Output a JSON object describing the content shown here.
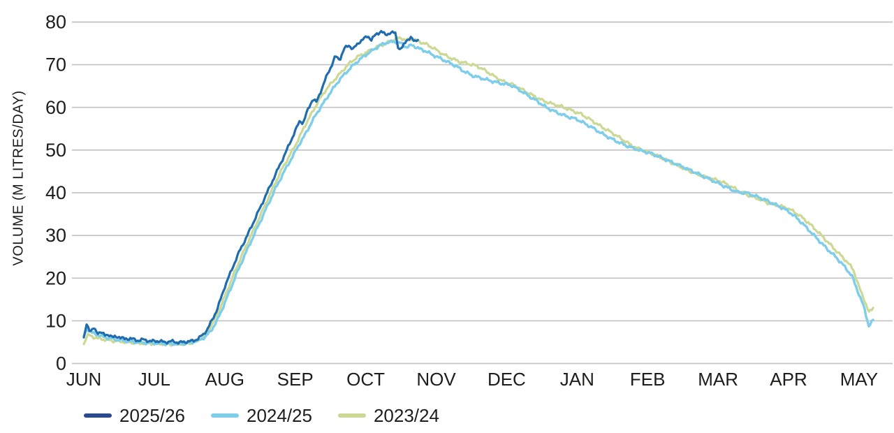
{
  "chart_data": {
    "type": "line",
    "title": "",
    "xlabel": "",
    "ylabel": "VOLUME (M LITRES/DAY)",
    "y_unit": "M litres/day",
    "x_unit": "months_from_jun1",
    "x_categories": [
      "JUN",
      "JUL",
      "AUG",
      "SEP",
      "OCT",
      "NOV",
      "DEC",
      "JAN",
      "FEB",
      "MAR",
      "APR",
      "MAY"
    ],
    "ylim": [
      0,
      80
    ],
    "yticks": [
      0,
      10,
      20,
      30,
      40,
      50,
      60,
      70,
      80
    ],
    "grid": "horizontal",
    "grid_color": "#c6c6c6",
    "text_color": "#1d1d1b",
    "background_color": "#ffffff",
    "legend_position": "bottom-left",
    "series": [
      {
        "name": "2025/26",
        "color": "#1f6cae",
        "legend_color": "#2b4a8c",
        "line_width": 3.2,
        "points": [
          [
            0.0,
            5.8
          ],
          [
            0.04,
            9.1
          ],
          [
            0.09,
            7.7
          ],
          [
            0.14,
            8.2
          ],
          [
            0.19,
            7.1
          ],
          [
            0.24,
            7.5
          ],
          [
            0.3,
            6.5
          ],
          [
            0.36,
            6.8
          ],
          [
            0.42,
            6.1
          ],
          [
            0.5,
            6.3
          ],
          [
            0.58,
            5.7
          ],
          [
            0.66,
            5.9
          ],
          [
            0.75,
            5.4
          ],
          [
            0.85,
            5.6
          ],
          [
            0.95,
            5.2
          ],
          [
            1.05,
            5.3
          ],
          [
            1.15,
            5.0
          ],
          [
            1.25,
            5.2
          ],
          [
            1.35,
            4.9
          ],
          [
            1.45,
            5.1
          ],
          [
            1.55,
            5.3
          ],
          [
            1.63,
            5.9
          ],
          [
            1.7,
            6.9
          ],
          [
            1.76,
            8.2
          ],
          [
            1.83,
            10.5
          ],
          [
            1.9,
            13.0
          ],
          [
            2.0,
            18.0
          ],
          [
            2.1,
            22.0
          ],
          [
            2.2,
            26.0
          ],
          [
            2.32,
            30.0
          ],
          [
            2.46,
            35.0
          ],
          [
            2.6,
            40.0
          ],
          [
            2.74,
            45.0
          ],
          [
            2.88,
            50.0
          ],
          [
            3.0,
            54.5
          ],
          [
            3.07,
            57.0
          ],
          [
            3.11,
            56.2
          ],
          [
            3.18,
            59.5
          ],
          [
            3.25,
            62.0
          ],
          [
            3.3,
            61.2
          ],
          [
            3.38,
            64.5
          ],
          [
            3.45,
            67.5
          ],
          [
            3.52,
            70.0
          ],
          [
            3.57,
            72.0
          ],
          [
            3.63,
            71.2
          ],
          [
            3.7,
            73.8
          ],
          [
            3.76,
            74.6
          ],
          [
            3.82,
            73.6
          ],
          [
            3.9,
            75.2
          ],
          [
            3.97,
            76.0
          ],
          [
            4.03,
            76.8
          ],
          [
            4.08,
            75.8
          ],
          [
            4.15,
            77.2
          ],
          [
            4.22,
            77.8
          ],
          [
            4.28,
            77.0
          ],
          [
            4.35,
            77.5
          ],
          [
            4.42,
            77.4
          ],
          [
            4.47,
            73.5
          ],
          [
            4.52,
            74.0
          ],
          [
            4.58,
            75.8
          ],
          [
            4.64,
            76.3
          ],
          [
            4.69,
            75.4
          ],
          [
            4.75,
            76.2
          ]
        ]
      },
      {
        "name": "2024/25",
        "color": "#7ecdea",
        "legend_color": "#7ecdea",
        "line_width": 3.4,
        "points": [
          [
            0.0,
            6.2
          ],
          [
            0.04,
            8.3
          ],
          [
            0.1,
            7.3
          ],
          [
            0.17,
            6.9
          ],
          [
            0.25,
            6.4
          ],
          [
            0.34,
            6.0
          ],
          [
            0.44,
            5.7
          ],
          [
            0.55,
            5.4
          ],
          [
            0.68,
            5.1
          ],
          [
            0.82,
            4.9
          ],
          [
            0.96,
            4.8
          ],
          [
            1.1,
            4.7
          ],
          [
            1.25,
            4.6
          ],
          [
            1.4,
            4.6
          ],
          [
            1.52,
            4.9
          ],
          [
            1.63,
            5.4
          ],
          [
            1.73,
            6.3
          ],
          [
            1.81,
            7.8
          ],
          [
            1.89,
            10.0
          ],
          [
            1.97,
            13.0
          ],
          [
            2.07,
            17.0
          ],
          [
            2.18,
            21.5
          ],
          [
            2.3,
            26.0
          ],
          [
            2.44,
            31.0
          ],
          [
            2.58,
            36.0
          ],
          [
            2.72,
            41.0
          ],
          [
            2.86,
            45.5
          ],
          [
            2.98,
            49.0
          ],
          [
            3.06,
            51.5
          ],
          [
            3.12,
            53.0
          ],
          [
            3.2,
            55.5
          ],
          [
            3.3,
            58.5
          ],
          [
            3.42,
            61.5
          ],
          [
            3.52,
            64.0
          ],
          [
            3.63,
            66.5
          ],
          [
            3.74,
            68.5
          ],
          [
            3.85,
            70.3
          ],
          [
            3.96,
            71.8
          ],
          [
            4.08,
            73.2
          ],
          [
            4.2,
            74.5
          ],
          [
            4.3,
            75.2
          ],
          [
            4.4,
            75.4
          ],
          [
            4.5,
            75.0
          ],
          [
            4.58,
            74.1
          ],
          [
            4.66,
            74.6
          ],
          [
            4.75,
            73.8
          ],
          [
            4.85,
            73.2
          ],
          [
            4.95,
            72.3
          ],
          [
            5.07,
            71.4
          ],
          [
            5.18,
            70.5
          ],
          [
            5.27,
            69.8
          ],
          [
            5.4,
            68.4
          ],
          [
            5.52,
            67.4
          ],
          [
            5.65,
            66.8
          ],
          [
            5.78,
            66.2
          ],
          [
            5.9,
            65.7
          ],
          [
            6.07,
            65.2
          ],
          [
            6.2,
            63.9
          ],
          [
            6.33,
            62.5
          ],
          [
            6.45,
            61.3
          ],
          [
            6.56,
            60.0
          ],
          [
            6.7,
            58.9
          ],
          [
            6.85,
            57.9
          ],
          [
            7.0,
            57.2
          ],
          [
            7.1,
            56.3
          ],
          [
            7.22,
            55.2
          ],
          [
            7.35,
            53.9
          ],
          [
            7.48,
            52.7
          ],
          [
            7.62,
            51.6
          ],
          [
            7.75,
            50.7
          ],
          [
            7.9,
            49.9
          ],
          [
            8.05,
            49.2
          ],
          [
            8.2,
            48.2
          ],
          [
            8.38,
            46.9
          ],
          [
            8.55,
            45.7
          ],
          [
            8.72,
            44.4
          ],
          [
            8.88,
            43.2
          ],
          [
            9.03,
            42.0
          ],
          [
            9.16,
            41.0
          ],
          [
            9.28,
            40.1
          ],
          [
            9.4,
            40.0
          ],
          [
            9.52,
            39.3
          ],
          [
            9.66,
            38.4
          ],
          [
            9.8,
            37.3
          ],
          [
            9.92,
            36.4
          ],
          [
            10.02,
            35.4
          ],
          [
            10.15,
            33.6
          ],
          [
            10.28,
            31.4
          ],
          [
            10.42,
            29.0
          ],
          [
            10.55,
            26.8
          ],
          [
            10.68,
            24.8
          ],
          [
            10.8,
            22.6
          ],
          [
            10.9,
            20.5
          ],
          [
            11.0,
            16.2
          ],
          [
            11.07,
            13.2
          ],
          [
            11.14,
            8.8
          ],
          [
            11.2,
            10.1
          ]
        ]
      },
      {
        "name": "2023/24",
        "color": "#ccd995",
        "legend_color": "#ccd995",
        "line_width": 3.2,
        "points": [
          [
            0.0,
            4.6
          ],
          [
            0.05,
            6.7
          ],
          [
            0.12,
            6.3
          ],
          [
            0.2,
            5.9
          ],
          [
            0.3,
            5.6
          ],
          [
            0.42,
            5.3
          ],
          [
            0.55,
            5.1
          ],
          [
            0.7,
            4.9
          ],
          [
            0.85,
            4.7
          ],
          [
            1.0,
            4.7
          ],
          [
            1.15,
            4.6
          ],
          [
            1.3,
            4.5
          ],
          [
            1.45,
            4.7
          ],
          [
            1.57,
            5.0
          ],
          [
            1.67,
            5.9
          ],
          [
            1.76,
            7.5
          ],
          [
            1.84,
            9.8
          ],
          [
            1.92,
            12.5
          ],
          [
            2.02,
            16.5
          ],
          [
            2.13,
            21.0
          ],
          [
            2.26,
            26.0
          ],
          [
            2.4,
            31.0
          ],
          [
            2.54,
            36.0
          ],
          [
            2.68,
            41.0
          ],
          [
            2.81,
            45.5
          ],
          [
            2.93,
            49.0
          ],
          [
            3.03,
            52.0
          ],
          [
            3.13,
            55.5
          ],
          [
            3.23,
            58.5
          ],
          [
            3.33,
            61.5
          ],
          [
            3.43,
            64.0
          ],
          [
            3.53,
            66.0
          ],
          [
            3.64,
            68.0
          ],
          [
            3.76,
            70.2
          ],
          [
            3.88,
            71.8
          ],
          [
            4.0,
            72.8
          ],
          [
            4.1,
            73.6
          ],
          [
            4.22,
            74.6
          ],
          [
            4.33,
            75.3
          ],
          [
            4.43,
            76.1
          ],
          [
            4.5,
            76.3
          ],
          [
            4.57,
            75.7
          ],
          [
            4.66,
            76.0
          ],
          [
            4.76,
            75.4
          ],
          [
            4.86,
            74.8
          ],
          [
            4.96,
            73.9
          ],
          [
            5.08,
            72.6
          ],
          [
            5.2,
            71.6
          ],
          [
            5.33,
            70.7
          ],
          [
            5.46,
            70.2
          ],
          [
            5.58,
            69.7
          ],
          [
            5.7,
            68.6
          ],
          [
            5.83,
            67.2
          ],
          [
            5.96,
            66.0
          ],
          [
            6.08,
            65.4
          ],
          [
            6.22,
            64.2
          ],
          [
            6.36,
            62.9
          ],
          [
            6.5,
            61.7
          ],
          [
            6.63,
            60.9
          ],
          [
            6.78,
            60.2
          ],
          [
            6.92,
            59.3
          ],
          [
            7.06,
            58.4
          ],
          [
            7.2,
            57.0
          ],
          [
            7.35,
            55.4
          ],
          [
            7.5,
            54.0
          ],
          [
            7.65,
            52.4
          ],
          [
            7.8,
            50.8
          ],
          [
            7.92,
            50.0
          ],
          [
            8.05,
            49.3
          ],
          [
            8.22,
            48.0
          ],
          [
            8.4,
            46.6
          ],
          [
            8.58,
            45.2
          ],
          [
            8.76,
            44.0
          ],
          [
            8.93,
            43.2
          ],
          [
            9.05,
            42.6
          ],
          [
            9.18,
            41.5
          ],
          [
            9.32,
            40.2
          ],
          [
            9.46,
            39.2
          ],
          [
            9.6,
            38.4
          ],
          [
            9.74,
            37.4
          ],
          [
            9.88,
            36.9
          ],
          [
            10.0,
            36.3
          ],
          [
            10.14,
            34.9
          ],
          [
            10.28,
            33.0
          ],
          [
            10.42,
            30.8
          ],
          [
            10.56,
            28.4
          ],
          [
            10.7,
            26.0
          ],
          [
            10.82,
            24.0
          ],
          [
            10.92,
            22.0
          ],
          [
            11.0,
            17.9
          ],
          [
            11.07,
            15.2
          ],
          [
            11.14,
            11.9
          ],
          [
            11.2,
            13.1
          ]
        ]
      }
    ]
  }
}
